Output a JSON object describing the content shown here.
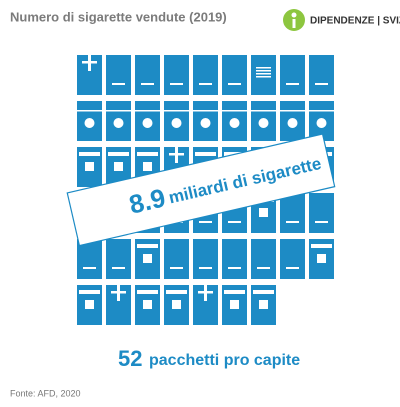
{
  "header": {
    "title": "Numero di sigarette vendute (2019)",
    "logo": "DIPENDENZE | SVIZZERA"
  },
  "banner": {
    "number": "8.9",
    "text": "miliardi di sigarette"
  },
  "summary": {
    "count": 52,
    "text": "pacchetti pro capite"
  },
  "footer": {
    "source": "Fonte: AFD, 2020"
  }
}
